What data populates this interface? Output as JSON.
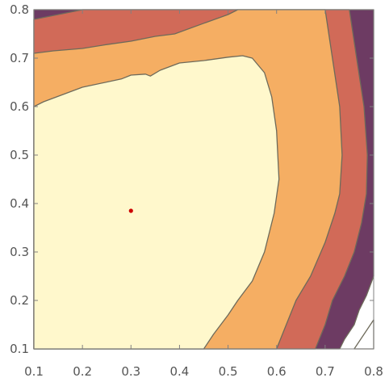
{
  "chart_data": {
    "type": "contour",
    "title": "",
    "xlabel": "",
    "ylabel": "",
    "xlim": [
      0.1,
      0.8
    ],
    "ylim": [
      0.1,
      0.8
    ],
    "x_ticks": [
      "0.1",
      "0.2",
      "0.3",
      "0.4",
      "0.5",
      "0.6",
      "0.7",
      "0.8"
    ],
    "y_ticks": [
      "0.1",
      "0.2",
      "0.3",
      "0.4",
      "0.5",
      "0.6",
      "0.7",
      "0.8"
    ],
    "levels": [
      {
        "level": 1,
        "color": "#FFF8CC",
        "outline": [
          [
            0.1,
            0.1
          ],
          [
            0.1,
            0.6
          ],
          [
            0.12,
            0.61
          ],
          [
            0.2,
            0.64
          ],
          [
            0.28,
            0.657
          ],
          [
            0.3,
            0.665
          ],
          [
            0.33,
            0.667
          ],
          [
            0.34,
            0.663
          ],
          [
            0.36,
            0.675
          ],
          [
            0.4,
            0.69
          ],
          [
            0.45,
            0.695
          ],
          [
            0.5,
            0.702
          ],
          [
            0.53,
            0.705
          ],
          [
            0.55,
            0.7
          ],
          [
            0.575,
            0.67
          ],
          [
            0.59,
            0.62
          ],
          [
            0.6,
            0.55
          ],
          [
            0.605,
            0.45
          ],
          [
            0.595,
            0.38
          ],
          [
            0.575,
            0.3
          ],
          [
            0.55,
            0.24
          ],
          [
            0.52,
            0.2
          ],
          [
            0.5,
            0.17
          ],
          [
            0.47,
            0.13
          ],
          [
            0.45,
            0.1
          ]
        ]
      },
      {
        "level": 2,
        "color": "#F5AE63",
        "outline": [
          [
            0.1,
            0.1
          ],
          [
            0.1,
            0.71
          ],
          [
            0.14,
            0.715
          ],
          [
            0.2,
            0.72
          ],
          [
            0.25,
            0.728
          ],
          [
            0.3,
            0.735
          ],
          [
            0.35,
            0.745
          ],
          [
            0.39,
            0.75
          ],
          [
            0.45,
            0.772
          ],
          [
            0.5,
            0.79
          ],
          [
            0.52,
            0.8
          ],
          [
            0.7,
            0.8
          ],
          [
            0.715,
            0.7
          ],
          [
            0.73,
            0.6
          ],
          [
            0.735,
            0.5
          ],
          [
            0.73,
            0.42
          ],
          [
            0.72,
            0.38
          ],
          [
            0.7,
            0.32
          ],
          [
            0.67,
            0.25
          ],
          [
            0.64,
            0.2
          ],
          [
            0.62,
            0.15
          ],
          [
            0.6,
            0.1
          ]
        ]
      },
      {
        "level": 3,
        "color": "#D16A58",
        "outline": [
          [
            0.1,
            0.1
          ],
          [
            0.1,
            0.78
          ],
          [
            0.15,
            0.79
          ],
          [
            0.2,
            0.8
          ],
          [
            0.75,
            0.8
          ],
          [
            0.765,
            0.7
          ],
          [
            0.78,
            0.6
          ],
          [
            0.787,
            0.5
          ],
          [
            0.785,
            0.42
          ],
          [
            0.775,
            0.36
          ],
          [
            0.76,
            0.3
          ],
          [
            0.74,
            0.25
          ],
          [
            0.715,
            0.2
          ],
          [
            0.7,
            0.15
          ],
          [
            0.68,
            0.1
          ]
        ]
      },
      {
        "level": 4,
        "color": "#6D3B63",
        "outline": [
          [
            0.1,
            0.1
          ],
          [
            0.1,
            0.8
          ],
          [
            0.8,
            0.8
          ],
          [
            0.8,
            0.25
          ],
          [
            0.785,
            0.21
          ],
          [
            0.77,
            0.18
          ],
          [
            0.76,
            0.15
          ],
          [
            0.74,
            0.12
          ],
          [
            0.73,
            0.1
          ]
        ]
      },
      {
        "level": 5,
        "color": "#FFFFFF",
        "outline": [
          [
            0.8,
            0.1
          ],
          [
            0.76,
            0.1
          ],
          [
            0.8,
            0.16
          ]
        ]
      }
    ],
    "marker": {
      "x": 0.3,
      "y": 0.385,
      "color": "#CC0000"
    },
    "frame_color": "#808080"
  }
}
